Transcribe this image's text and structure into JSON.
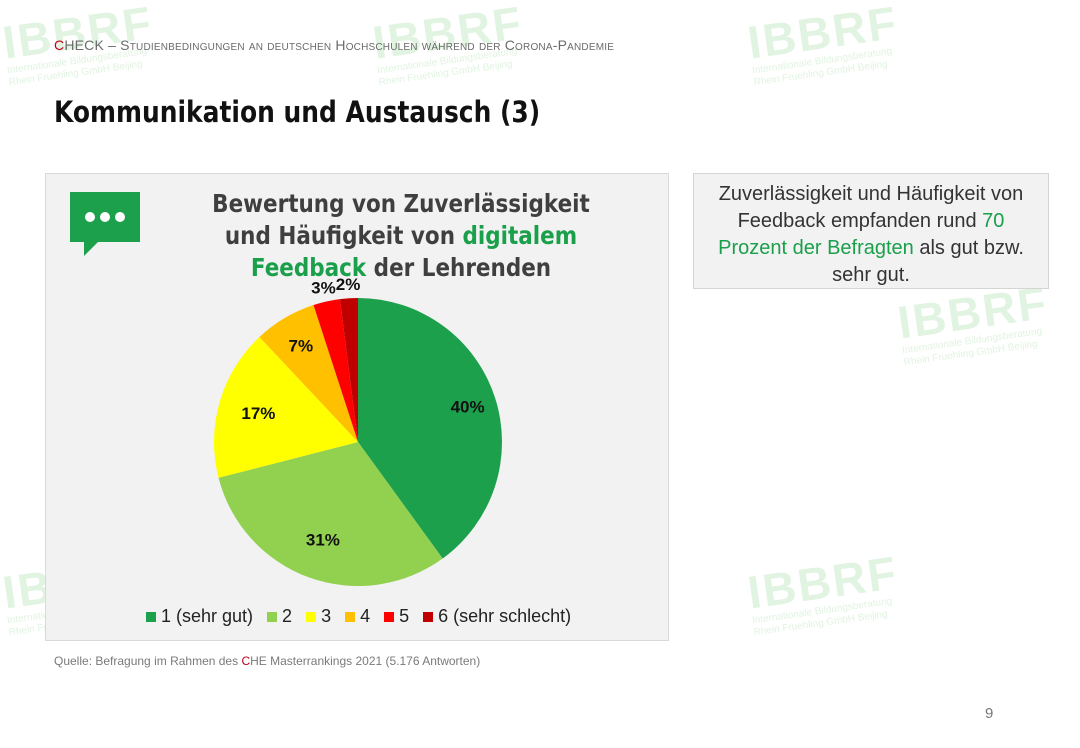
{
  "header": {
    "brand": "CHECK",
    "brand_first": "C",
    "brand_rest": "HECK",
    "subtitle": " – Studienbedingungen an deutschen Hochschulen während der Corona-Pandemie"
  },
  "slide_title": "Kommunikation und Austausch (3)",
  "chart_data": {
    "type": "pie",
    "title_part1": "Bewertung von Zuverlässigkeit und Häufigkeit von ",
    "title_highlight": "digitalem Feedback",
    "title_part2": " der Lehrenden",
    "categories": [
      "1 (sehr gut)",
      "2",
      "3",
      "4",
      "5",
      "6 (sehr schlecht)"
    ],
    "values": [
      40,
      31,
      17,
      7,
      3,
      2
    ],
    "value_labels": [
      "40%",
      "31%",
      "17%",
      "7%",
      "3%",
      "2%"
    ],
    "colors": [
      "#1ca04c",
      "#92d050",
      "#ffff00",
      "#ffc000",
      "#ff0000",
      "#c00000"
    ],
    "legend_position": "bottom"
  },
  "callout": {
    "part1": "Zuverlässigkeit und Häufigkeit von Feedback empfanden rund ",
    "highlight": "70 Prozent der Befragten",
    "part2": " als gut bzw. sehr gut."
  },
  "source": {
    "prefix": "Quelle: Befragung im Rahmen des ",
    "brand_c": "C",
    "suffix": "HE Masterrankings 2021 (5.176 Antworten)"
  },
  "page_number": "9",
  "watermark": {
    "big": "IBBRF",
    "line1": "Internationale Bildungsberatung",
    "line2": "Rhein Fruehling GmbH Beijing"
  },
  "colors": {
    "accent_green": "#1a9f4b",
    "brand_red": "#c0001b"
  }
}
